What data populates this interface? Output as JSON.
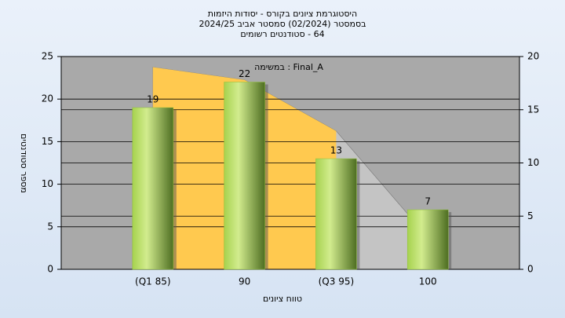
{
  "chart_data": {
    "type": "bar",
    "title": [
      "היסטוגרמת ציונים בקורס - יסודות היזמות",
      "בסמסטר  (02/2024)  סמסטר אביב 2024/25",
      "64 - סטודנטים רשומים"
    ],
    "annotation": "במשימה : Final_A",
    "y_label": "מספר סטודנטים",
    "x_label": "טווח ציונים",
    "categories": [
      "(Q1 85)",
      "90",
      "(Q3 95)",
      "100"
    ],
    "values": [
      19,
      22,
      13,
      7
    ],
    "color": "#8fbf3a",
    "ylim": [
      0,
      25
    ],
    "yticks": [
      0,
      5,
      10,
      15,
      20,
      25
    ],
    "y2lim": [
      0,
      20
    ],
    "y2ticks": [
      0,
      5,
      10,
      15,
      20
    ],
    "series": [
      {
        "color": "#c4c4c4",
        "values": [
          19,
          17.8,
          13,
          3
        ],
        "axis": "y2"
      }
    ],
    "band_color": "#ffc94f",
    "band_range": [
      0,
      2
    ],
    "grid": true
  }
}
